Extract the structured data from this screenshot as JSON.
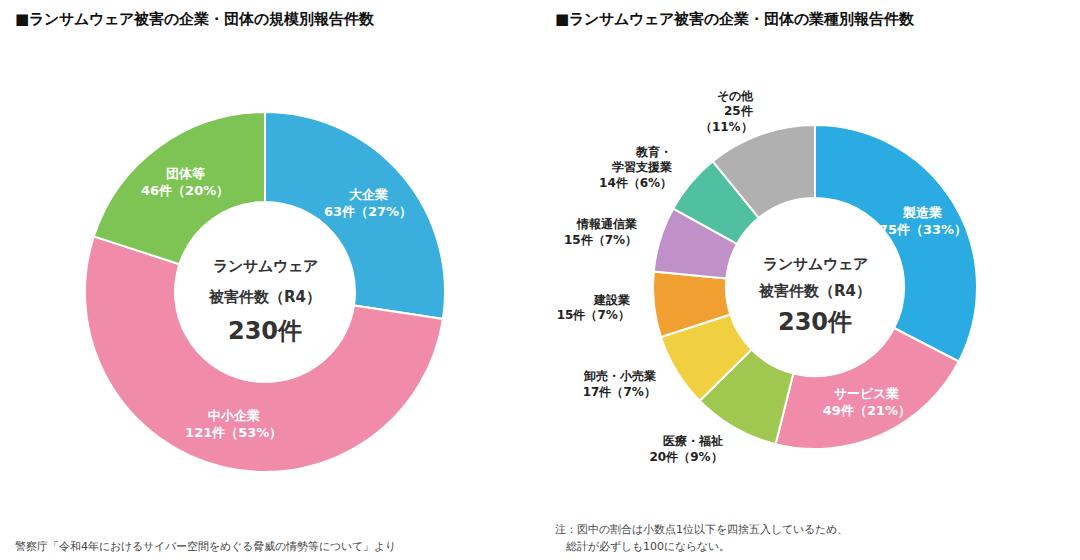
{
  "chart_data": [
    {
      "type": "pie",
      "title": "■ランサムウェア被害の企業・団体の規模別報告件数",
      "categories": [
        "大企業",
        "中小企業",
        "団体等"
      ],
      "values": [
        63,
        121,
        46
      ],
      "value_labels": [
        "63件（27%）",
        "121件（53%）",
        "46件（20%）"
      ],
      "colors": [
        "#3aaedc",
        "#f08caa",
        "#7dc455"
      ],
      "data_labels": true,
      "annotations": [
        "ランサムウェア",
        "被害件数（R4）",
        "230件",
        "警察庁「令和4年におけるサイバー空間をめぐる脅威の情勢等について」より"
      ]
    },
    {
      "type": "pie",
      "title": "■ランサムウェア被害の企業・団体の業種別報告件数",
      "categories": [
        "製造業",
        "サービス業",
        "医療・福祉",
        "卸売・小売業",
        "建設業",
        "情報通信業",
        "教育・\n学習支援業",
        "その他"
      ],
      "values": [
        75,
        49,
        20,
        17,
        15,
        15,
        14,
        25
      ],
      "value_labels": [
        "75件（33%）",
        "49件（21%）",
        "20件（9%）",
        "17件（7%）",
        "15件（7%）",
        "15件（7%）",
        "14件（6%）",
        "25件\n（11%）"
      ],
      "colors": [
        "#2aace2",
        "#f08caa",
        "#a0c850",
        "#f0d040",
        "#f0a030",
        "#c090c8",
        "#50c0a0",
        "#b0b0b0"
      ],
      "data_labels": true,
      "annotations": [
        "ランサムウェア",
        "被害件数（R4）",
        "230件",
        "注：図中の割合は小数点1位以下を四捨五入しているため、",
        "　総計が必ずしも100にならない。"
      ]
    }
  ]
}
